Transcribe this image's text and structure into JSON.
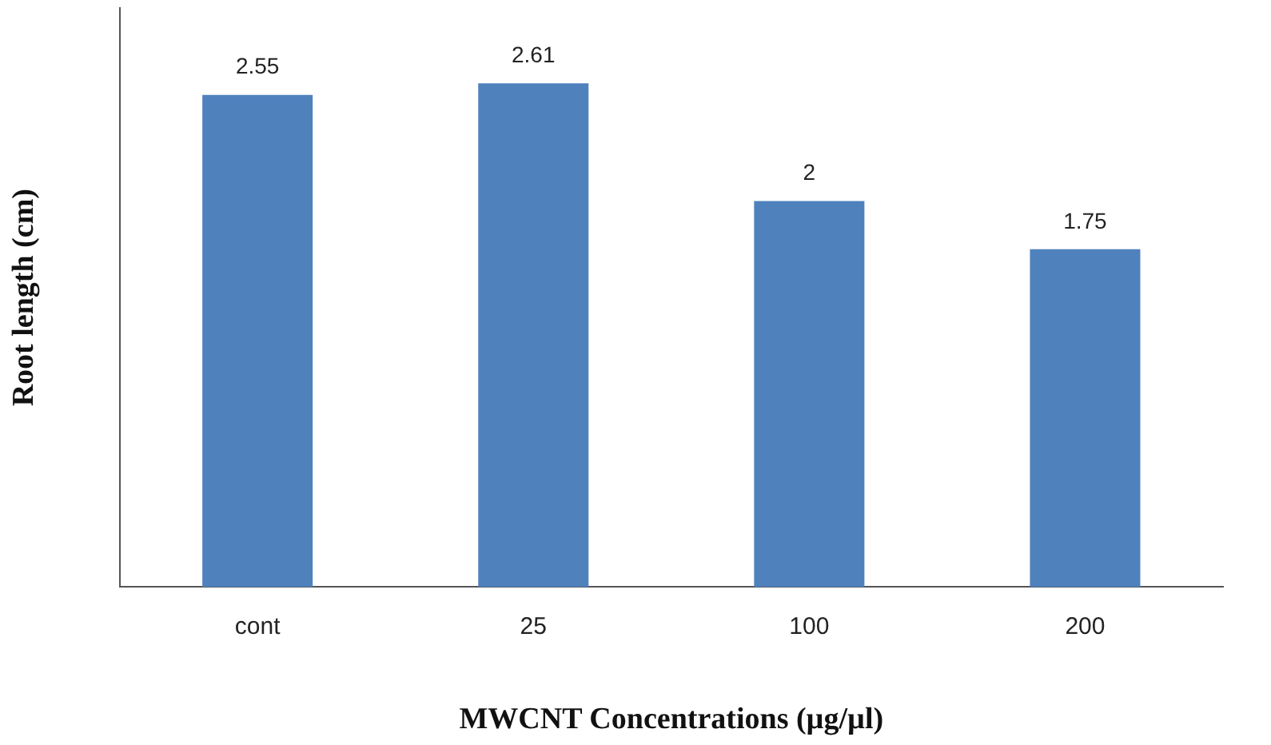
{
  "chart_data": {
    "type": "bar",
    "xlabel": "MWCNT Concentrations (µg/µl)",
    "ylabel": "Root length (cm)",
    "categories": [
      "cont",
      "25",
      "100",
      "200"
    ],
    "values": [
      2.55,
      2.61,
      2,
      1.75
    ],
    "color": "#4f81bd",
    "data_labels": true,
    "grid": false,
    "legend": false
  }
}
